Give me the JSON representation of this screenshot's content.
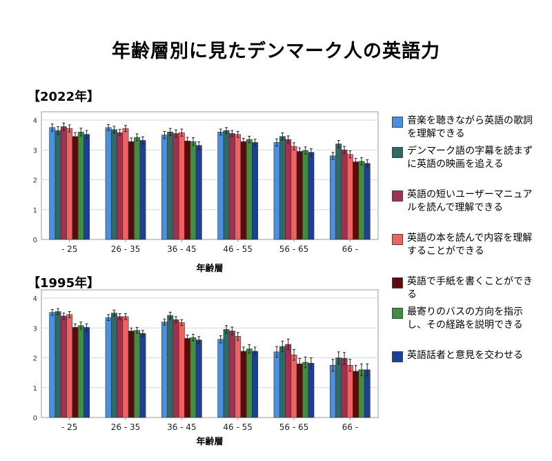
{
  "title": "年齢層別に見たデンマーク人の英語力",
  "legend": [
    {
      "label": "音楽を聴きながら英語の歌詞を理解できる",
      "color": "#4a90e2"
    },
    {
      "label": "デンマーク語の字幕を読まずに英語の映画を追える",
      "color": "#2e6b64"
    },
    {
      "label": "英語の短いユーザーマニュアルを読んで理解できる",
      "color": "#a3304f"
    },
    {
      "label": "英語の本を読んで内容を理解することができる",
      "color": "#f06262"
    },
    {
      "label": "英語で手紙を書くことができる",
      "color": "#5c0a0a"
    },
    {
      "label": "最寄りのバスの方向を指示し、その経路を説明できる",
      "color": "#3f8f3f"
    },
    {
      "label": "英語話者と意見を交わせる",
      "color": "#1a3f9c"
    }
  ],
  "chart_data": [
    {
      "type": "bar",
      "title": "【2022年】",
      "xlabel": "年齢層",
      "ylabel": "",
      "ylim": [
        0,
        4
      ],
      "yticks": [
        "0",
        "1",
        "2",
        "3",
        "4"
      ],
      "categories": [
        "- 25",
        "26 - 35",
        "36 - 45",
        "46 - 55",
        "56 - 65",
        "66 -"
      ],
      "series": [
        {
          "name": "音楽を聴きながら英語の歌詞を理解できる",
          "values": [
            3.75,
            3.75,
            3.5,
            3.6,
            3.25,
            2.8
          ],
          "errors": [
            0.12,
            0.1,
            0.12,
            0.1,
            0.12,
            0.12
          ]
        },
        {
          "name": "デンマーク語の字幕を読まずに英語の映画を追える",
          "values": [
            3.65,
            3.68,
            3.6,
            3.65,
            3.45,
            3.2
          ],
          "errors": [
            0.13,
            0.11,
            0.12,
            0.1,
            0.12,
            0.12
          ]
        },
        {
          "name": "英語の短いユーザーマニュアルを読んで理解できる",
          "values": [
            3.78,
            3.58,
            3.55,
            3.55,
            3.35,
            3.0
          ],
          "errors": [
            0.12,
            0.11,
            0.12,
            0.1,
            0.12,
            0.12
          ]
        },
        {
          "name": "英語の本を読んで内容を理解することができる",
          "values": [
            3.72,
            3.72,
            3.58,
            3.52,
            3.12,
            2.85
          ],
          "errors": [
            0.12,
            0.1,
            0.12,
            0.1,
            0.12,
            0.12
          ]
        },
        {
          "name": "英語で手紙を書くことができる",
          "values": [
            3.45,
            3.28,
            3.3,
            3.28,
            2.95,
            2.6
          ],
          "errors": [
            0.13,
            0.12,
            0.12,
            0.11,
            0.12,
            0.12
          ]
        },
        {
          "name": "最寄りのバスの方向を指示し、その経路を説明できる",
          "values": [
            3.6,
            3.42,
            3.28,
            3.35,
            2.98,
            2.62
          ],
          "errors": [
            0.13,
            0.12,
            0.13,
            0.11,
            0.12,
            0.12
          ]
        },
        {
          "name": "英語話者と意見を交わせる",
          "values": [
            3.52,
            3.32,
            3.15,
            3.25,
            2.92,
            2.55
          ],
          "errors": [
            0.13,
            0.12,
            0.12,
            0.11,
            0.12,
            0.12
          ]
        }
      ]
    },
    {
      "type": "bar",
      "title": "【1995年】",
      "xlabel": "年齢層",
      "ylabel": "",
      "ylim": [
        0,
        4
      ],
      "yticks": [
        "0",
        "1",
        "2",
        "3",
        "4"
      ],
      "categories": [
        "- 25",
        "26 - 35",
        "36 - 45",
        "46 - 55",
        "56 - 65",
        "66 -"
      ],
      "series": [
        {
          "name": "音楽を聴きながら英語の歌詞を理解できる",
          "values": [
            3.52,
            3.35,
            3.2,
            2.62,
            2.2,
            1.75
          ],
          "errors": [
            0.1,
            0.1,
            0.1,
            0.12,
            0.18,
            0.2
          ]
        },
        {
          "name": "デンマーク語の字幕を読まずに英語の映画を追える",
          "values": [
            3.55,
            3.5,
            3.42,
            2.95,
            2.38,
            2.0
          ],
          "errors": [
            0.1,
            0.1,
            0.11,
            0.13,
            0.18,
            0.2
          ]
        },
        {
          "name": "英語の短いユーザーマニュアルを読んで理解できる",
          "values": [
            3.4,
            3.38,
            3.28,
            2.9,
            2.45,
            1.98
          ],
          "errors": [
            0.1,
            0.1,
            0.1,
            0.13,
            0.18,
            0.2
          ]
        },
        {
          "name": "英語の本を読んで内容を理解することができる",
          "values": [
            3.45,
            3.38,
            3.18,
            2.72,
            2.1,
            1.75
          ],
          "errors": [
            0.1,
            0.1,
            0.1,
            0.13,
            0.18,
            0.2
          ]
        },
        {
          "name": "英語で手紙を書くことができる",
          "values": [
            3.02,
            2.9,
            2.65,
            2.22,
            1.8,
            1.55
          ],
          "errors": [
            0.12,
            0.1,
            0.11,
            0.14,
            0.18,
            0.2
          ]
        },
        {
          "name": "最寄りのバスの方向を指示し、その経路を説明できる",
          "values": [
            3.08,
            2.92,
            2.68,
            2.3,
            1.85,
            1.6
          ],
          "errors": [
            0.12,
            0.1,
            0.11,
            0.14,
            0.18,
            0.2
          ]
        },
        {
          "name": "英語話者と意見を交わせる",
          "values": [
            3.02,
            2.82,
            2.6,
            2.22,
            1.82,
            1.6
          ],
          "errors": [
            0.12,
            0.1,
            0.11,
            0.14,
            0.18,
            0.2
          ]
        }
      ]
    }
  ]
}
